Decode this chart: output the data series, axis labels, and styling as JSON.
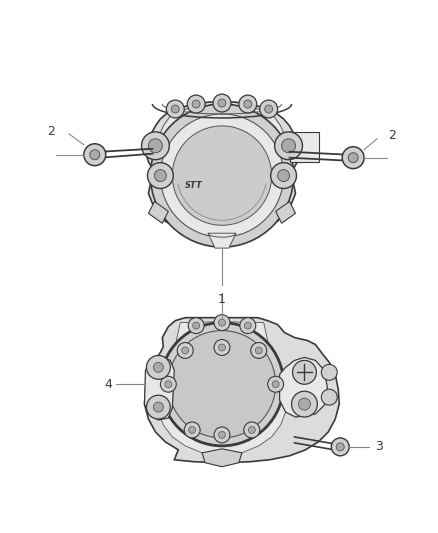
{
  "background_color": "#ffffff",
  "line_color": "#3a3a3a",
  "light_line_color": "#888888",
  "mid_line_color": "#555555",
  "fill_light": "#e8e8e8",
  "fill_mid": "#d0d0d0",
  "fill_dark": "#b8b8b8",
  "fill_body": "#dcdcdc",
  "figsize": [
    4.38,
    5.33
  ],
  "dpi": 100
}
